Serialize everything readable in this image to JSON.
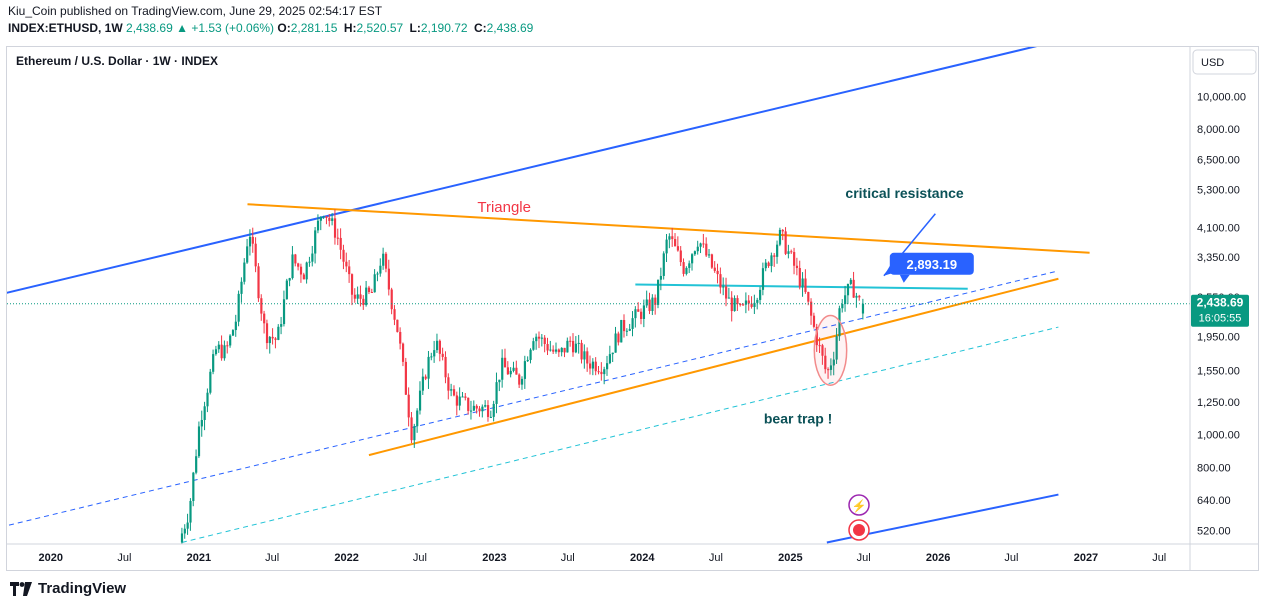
{
  "header": {
    "published": "Kiu_Coin published on TradingView.com, June 29, 2025 02:54:17 EST",
    "symbol": "INDEX:ETHUSD, 1W",
    "last": "2,438.69",
    "change": "+1.53 (+0.06%)",
    "open_label": "O:",
    "open": "2,281.15",
    "high_label": "H:",
    "high": "2,520.57",
    "low_label": "L:",
    "low": "2,190.72",
    "close_label": "C:",
    "close": "2,438.69"
  },
  "footer": {
    "brand": "TradingView"
  },
  "colors": {
    "up": "#089981",
    "down": "#f23645",
    "blue_channel": "#2962ff",
    "orange": "#ff9800",
    "cyan": "#22c3d6",
    "callout": "#2962ff",
    "price_tag": "#089981"
  },
  "chart_data": {
    "type": "candlestick",
    "title": "Ethereum / U.S. Dollar · 1W · INDEX",
    "currency": "USD",
    "y_scale": "log",
    "ylim": [
      475,
      14000
    ],
    "xlim": [
      "2019-09-15",
      "2027-09-15"
    ],
    "y_ticks": [
      "10,000.00",
      "8,000.00",
      "6,500.00",
      "5,300.00",
      "4,100.00",
      "3,350.00",
      "2,550.00",
      "1,950.00",
      "1,550.00",
      "1,250.00",
      "1,000.00",
      "800.00",
      "640.00",
      "520.00"
    ],
    "x_ticks": [
      {
        "label": "2020",
        "date": "2020-01-01",
        "bold": true
      },
      {
        "label": "Jul",
        "date": "2020-07-01",
        "bold": false
      },
      {
        "label": "2021",
        "date": "2021-01-01",
        "bold": true
      },
      {
        "label": "Jul",
        "date": "2021-07-01",
        "bold": false
      },
      {
        "label": "2022",
        "date": "2022-01-01",
        "bold": true
      },
      {
        "label": "Jul",
        "date": "2022-07-01",
        "bold": false
      },
      {
        "label": "2023",
        "date": "2023-01-01",
        "bold": true
      },
      {
        "label": "Jul",
        "date": "2023-07-01",
        "bold": false
      },
      {
        "label": "2024",
        "date": "2024-01-01",
        "bold": true
      },
      {
        "label": "Jul",
        "date": "2024-07-01",
        "bold": false
      },
      {
        "label": "2025",
        "date": "2025-01-01",
        "bold": true
      },
      {
        "label": "Jul",
        "date": "2025-07-01",
        "bold": false
      },
      {
        "label": "2026",
        "date": "2026-01-01",
        "bold": true
      },
      {
        "label": "Jul",
        "date": "2026-07-01",
        "bold": false
      },
      {
        "label": "2027",
        "date": "2027-01-01",
        "bold": true
      },
      {
        "label": "Jul",
        "date": "2027-07-01",
        "bold": false
      }
    ],
    "price_path": [
      [
        "2020-11-20",
        480
      ],
      [
        "2020-12-15",
        600
      ],
      [
        "2021-01-10",
        1100
      ],
      [
        "2021-02-20",
        1800
      ],
      [
        "2021-03-15",
        1750
      ],
      [
        "2021-04-10",
        2200
      ],
      [
        "2021-05-12",
        4100
      ],
      [
        "2021-06-20",
        2000
      ],
      [
        "2021-07-20",
        1900
      ],
      [
        "2021-08-25",
        3300
      ],
      [
        "2021-09-25",
        3000
      ],
      [
        "2021-11-10",
        4700
      ],
      [
        "2021-12-15",
        3900
      ],
      [
        "2022-01-25",
        2500
      ],
      [
        "2022-03-10",
        2600
      ],
      [
        "2022-04-05",
        3400
      ],
      [
        "2022-05-15",
        2000
      ],
      [
        "2022-06-18",
        1000
      ],
      [
        "2022-07-25",
        1600
      ],
      [
        "2022-08-15",
        1900
      ],
      [
        "2022-09-25",
        1300
      ],
      [
        "2022-11-10",
        1200
      ],
      [
        "2022-12-30",
        1200
      ],
      [
        "2023-01-25",
        1600
      ],
      [
        "2023-03-10",
        1450
      ],
      [
        "2023-04-15",
        2000
      ],
      [
        "2023-06-15",
        1700
      ],
      [
        "2023-07-15",
        1900
      ],
      [
        "2023-08-25",
        1640
      ],
      [
        "2023-10-05",
        1600
      ],
      [
        "2023-11-15",
        2050
      ],
      [
        "2024-01-05",
        2300
      ],
      [
        "2024-02-10",
        2500
      ],
      [
        "2024-03-12",
        3900
      ],
      [
        "2024-04-20",
        3100
      ],
      [
        "2024-05-25",
        3800
      ],
      [
        "2024-07-05",
        3000
      ],
      [
        "2024-08-06",
        2500
      ],
      [
        "2024-09-08",
        2300
      ],
      [
        "2024-10-15",
        2600
      ],
      [
        "2024-11-15",
        3300
      ],
      [
        "2024-12-15",
        3900
      ],
      [
        "2025-01-10",
        3300
      ],
      [
        "2025-02-10",
        2700
      ],
      [
        "2025-03-10",
        2000
      ],
      [
        "2025-04-08",
        1500
      ],
      [
        "2025-04-28",
        1800
      ],
      [
        "2025-05-12",
        2500
      ],
      [
        "2025-06-10",
        2750
      ],
      [
        "2025-06-29",
        2438.69
      ]
    ],
    "last_candle": {
      "date": "2025-06-29",
      "open": 2281.15,
      "high": 2520.57,
      "low": 2190.72,
      "close": 2438.69
    },
    "price_label": "2,438.69",
    "countdown": "16:05:55",
    "lines": [
      {
        "name": "upper-blue-channel",
        "color": "#2962ff",
        "style": "solid",
        "p1": [
          "2019-06-01",
          2450
        ],
        "p2": [
          "2026-10-15",
          14500
        ]
      },
      {
        "name": "lower-blue-channel",
        "color": "#2962ff",
        "style": "solid",
        "p1": [
          "2025-04-01",
          480
        ],
        "p2": [
          "2026-10-25",
          665
        ]
      },
      {
        "name": "dashed-blue-mid",
        "color": "#2962ff",
        "style": "dashed",
        "p1": [
          "2019-09-20",
          540
        ],
        "p2": [
          "2026-10-25",
          3050
        ]
      },
      {
        "name": "dashed-cyan-lower",
        "color": "#22c3d6",
        "style": "dashed",
        "p1": [
          "2020-11-20",
          480
        ],
        "p2": [
          "2026-10-25",
          2080
        ]
      },
      {
        "name": "triangle-top",
        "color": "#ff9800",
        "style": "solid",
        "p1": [
          "2021-05-01",
          4800
        ],
        "p2": [
          "2027-01-10",
          3450
        ]
      },
      {
        "name": "triangle-bottom",
        "color": "#ff9800",
        "style": "solid",
        "p1": [
          "2022-02-25",
          870
        ],
        "p2": [
          "2026-10-25",
          2890
        ]
      },
      {
        "name": "critical-resistance-line",
        "color": "#22c3d6",
        "style": "solid",
        "p1": [
          "2023-12-15",
          2780
        ],
        "p2": [
          "2026-03-15",
          2700
        ]
      }
    ],
    "annotations": [
      {
        "text": "Triangle",
        "color": "#f23645",
        "at": [
          "2023-01-25",
          4550
        ]
      },
      {
        "text": "critical resistance",
        "color": "#0b5157",
        "at": [
          "2025-10-10",
          5000
        ]
      },
      {
        "text": "bear trap !",
        "color": "#0b5157",
        "at": [
          "2025-01-20",
          1080
        ]
      }
    ],
    "callout": {
      "value": "2,893.19",
      "at": [
        "2026-01-05",
        3200
      ]
    },
    "ellipse": {
      "center": [
        "2025-04-10",
        1800
      ],
      "rx_days": 40,
      "ry_price_top": 2250,
      "ry_price_bottom": 1400
    }
  }
}
